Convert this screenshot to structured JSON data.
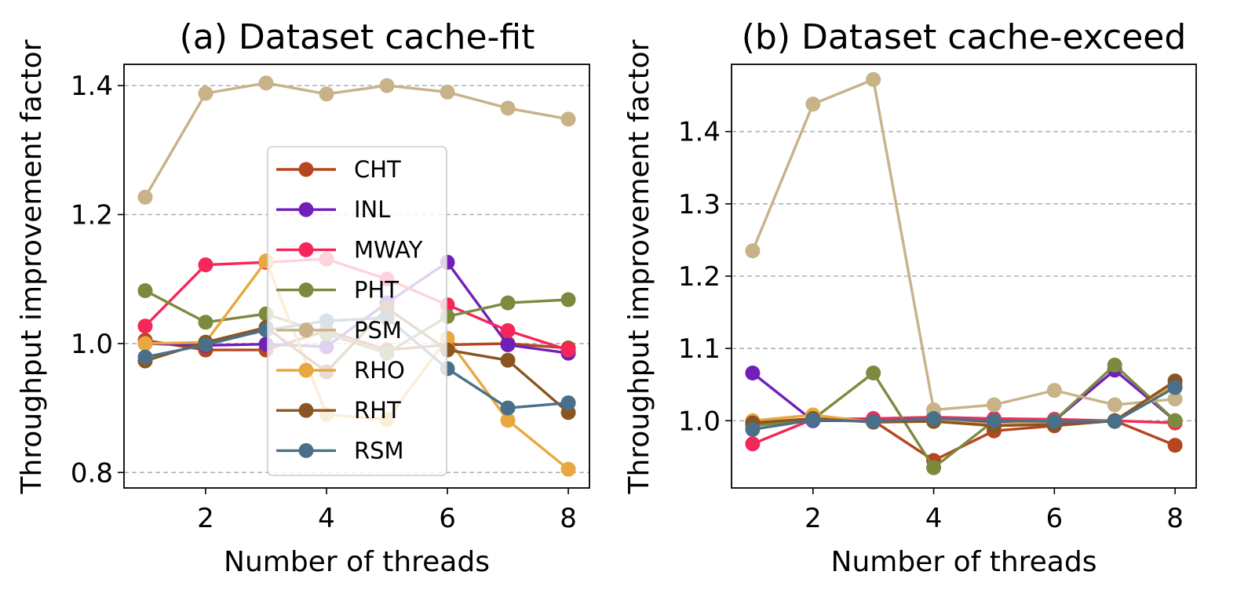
{
  "figure": {
    "ylabel": "Throughput improvement factor",
    "xlabel": "Number of threads"
  },
  "chart_data": [
    {
      "type": "line",
      "title": "(a) Dataset cache-fit",
      "xlabel": "Number of threads",
      "ylabel": "Throughput improvement factor",
      "xlim": [
        0.65,
        8.35
      ],
      "ylim": [
        0.776,
        1.433
      ],
      "xticks": [
        2,
        4,
        6,
        8
      ],
      "yticks": [
        0.8,
        1.0,
        1.2,
        1.4
      ],
      "ytick_labels": [
        "0.8",
        "1.0",
        "1.2",
        "1.4"
      ],
      "grid": "y-dashed",
      "legend": "center",
      "x": [
        1,
        2,
        3,
        4,
        5,
        6,
        7,
        8
      ],
      "series": [
        {
          "name": "CHT",
          "color": "#b5461f",
          "values": [
            1.005,
            0.99,
            0.99,
            1.02,
            0.99,
            0.998,
            1.0,
            0.993
          ]
        },
        {
          "name": "INL",
          "color": "#7020b8",
          "values": [
            1.0,
            0.997,
            0.999,
            0.995,
            1.063,
            1.126,
            0.998,
            0.985
          ]
        },
        {
          "name": "MWAY",
          "color": "#f5275a",
          "values": [
            1.027,
            1.122,
            1.126,
            1.131,
            1.1,
            1.06,
            1.02,
            0.99
          ]
        },
        {
          "name": "PHT",
          "color": "#7c8a3e",
          "values": [
            1.082,
            1.033,
            1.046,
            1.015,
            0.985,
            1.042,
            1.063,
            1.068
          ]
        },
        {
          "name": "PSM",
          "color": "#c8b288",
          "values": [
            1.227,
            1.388,
            1.404,
            1.387,
            1.4,
            1.39,
            1.365,
            1.348
          ]
        },
        {
          "name": "RHO",
          "color": "#e9a83f",
          "values": [
            1.0,
            1.002,
            1.128,
            0.89,
            0.882,
            1.008,
            0.881,
            0.805
          ]
        },
        {
          "name": "RHT",
          "color": "#8a5520",
          "values": [
            0.973,
            1.002,
            1.025,
            0.956,
            1.055,
            0.99,
            0.974,
            0.893
          ]
        },
        {
          "name": "RSM",
          "color": "#4a7089",
          "values": [
            0.979,
            0.998,
            1.021,
            1.035,
            1.04,
            0.961,
            0.9,
            0.908
          ]
        }
      ]
    },
    {
      "type": "line",
      "title": "(b) Dataset cache-exceed",
      "xlabel": "Number of threads",
      "ylabel": "Throughput improvement factor",
      "xlim": [
        0.65,
        8.35
      ],
      "ylim": [
        0.907,
        1.493
      ],
      "xticks": [
        2,
        4,
        6,
        8
      ],
      "yticks": [
        1.0,
        1.1,
        1.2,
        1.3,
        1.4
      ],
      "ytick_labels": [
        "1.0",
        "1.1",
        "1.2",
        "1.3",
        "1.4"
      ],
      "grid": "y-dashed",
      "legend": "none",
      "x": [
        1,
        2,
        3,
        4,
        5,
        6,
        7,
        8
      ],
      "series": [
        {
          "name": "CHT",
          "color": "#b5461f",
          "values": [
            0.995,
            1.003,
            1.0,
            0.945,
            0.986,
            0.993,
            1.0,
            0.966
          ]
        },
        {
          "name": "INL",
          "color": "#7020b8",
          "values": [
            1.066,
            1.0,
            1.0,
            1.0,
            0.997,
            1.0,
            1.07,
            1.0
          ]
        },
        {
          "name": "MWAY",
          "color": "#f5275a",
          "values": [
            0.968,
            1.002,
            1.003,
            1.005,
            1.003,
            1.002,
            1.0,
            0.997
          ]
        },
        {
          "name": "PHT",
          "color": "#7c8a3e",
          "values": [
            0.993,
            1.002,
            1.066,
            0.935,
            1.0,
            1.0,
            1.077,
            1.0
          ]
        },
        {
          "name": "PSM",
          "color": "#c8b288",
          "values": [
            1.235,
            1.438,
            1.472,
            1.015,
            1.022,
            1.042,
            1.022,
            1.03
          ]
        },
        {
          "name": "RHO",
          "color": "#e9a83f",
          "values": [
            1.0,
            1.008,
            0.998,
            1.0,
            0.995,
            0.998,
            1.0,
            1.05
          ]
        },
        {
          "name": "RHT",
          "color": "#8a5520",
          "values": [
            0.997,
            1.003,
            0.998,
            0.999,
            0.993,
            0.995,
            1.0,
            1.055
          ]
        },
        {
          "name": "RSM",
          "color": "#4a7089",
          "values": [
            0.988,
            1.001,
            0.999,
            1.003,
            1.0,
            0.999,
            0.999,
            1.046
          ]
        }
      ]
    }
  ]
}
